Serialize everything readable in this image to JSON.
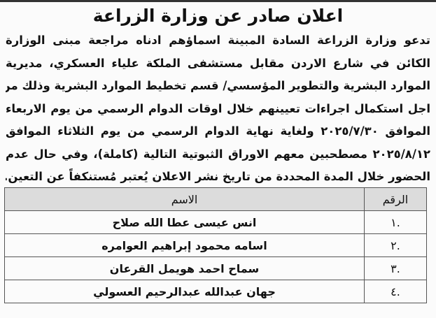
{
  "title": "اعلان صادر عن وزارة الزراعة",
  "body_lines": [
    "تدعو وزارة الزراعة السادة المبينة اسماؤهم ادناه مراجعة مبنى الوزارة",
    "الكائن في شارع الاردن مقابل مستشفى الملكة علياء العسكري، مديرية",
    "الموارد البشرية والتطوير المؤسسي/ قسم تخطيط الموارد البشرية وذلك من",
    "اجل استكمال اجراءات تعيينهم خلال اوقات الدوام الرسمي من يوم الاربعاء",
    "الموافق ٢٠٢٥/٧/٣٠ ولغاية نهاية الدوام الرسمي من يوم الثلاثاء الموافق",
    "٢٠٢٥/٨/١٢ مصطحبين معهم الاوراق الثبوتية التالية (كاملة)، وفي حال عدم",
    "الحضور خلال المدة المحددة من تاريخ نشر الاعلان يُعتبر مُستنكفاً عن التعين."
  ],
  "table": {
    "headers": {
      "number": "الرقم",
      "name": "الاسم"
    },
    "rows": [
      {
        "number": ".١",
        "name": "انس عيسى عطا الله صلاح"
      },
      {
        "number": ".٢",
        "name": "اسامه محمود إبراهيم العوامره"
      },
      {
        "number": ".٣",
        "name": "سماح احمد هويمل القرعان"
      },
      {
        "number": ".٤",
        "name": "جهان عبدالله عبدالرحيم العسولي"
      }
    ]
  }
}
